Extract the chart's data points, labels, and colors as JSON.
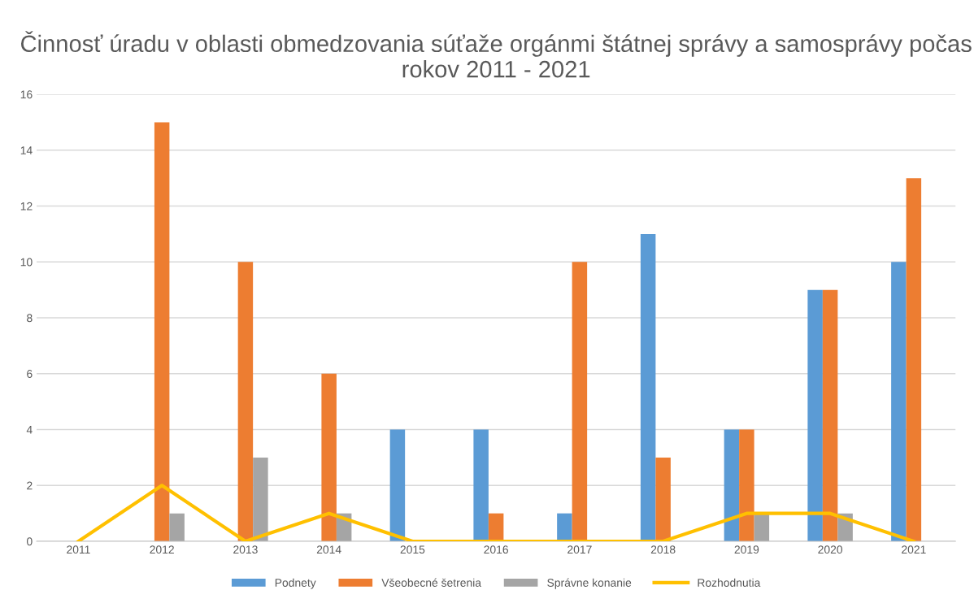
{
  "chart_data": {
    "type": "bar",
    "title": "Činnosť úradu v oblasti obmedzovania súťaže orgánmi štátnej správy a samosprávy počas rokov 2011 - 2021",
    "categories": [
      "2011",
      "2012",
      "2013",
      "2014",
      "2015",
      "2016",
      "2017",
      "2018",
      "2019",
      "2020",
      "2021"
    ],
    "series": [
      {
        "name": "Podnety",
        "color": "#5b9bd5",
        "values": [
          0,
          0,
          0,
          0,
          4,
          4,
          1,
          11,
          4,
          9,
          10
        ]
      },
      {
        "name": "Všeobecné šetrenia",
        "color": "#ed7d31",
        "values": [
          0,
          15,
          10,
          6,
          0,
          1,
          10,
          3,
          4,
          9,
          13
        ]
      },
      {
        "name": "Správne konanie",
        "color": "#a5a5a5",
        "values": [
          0,
          1,
          3,
          1,
          0,
          0,
          0,
          0,
          1,
          1,
          0
        ]
      },
      {
        "name": "Rozhodnutia",
        "type": "line",
        "color": "#ffc000",
        "values": [
          0,
          2,
          0,
          1,
          0,
          0,
          0,
          0,
          1,
          1,
          0
        ]
      }
    ],
    "ylim": [
      0,
      16
    ],
    "yticks": [
      0,
      2,
      4,
      6,
      8,
      10,
      12,
      14,
      16
    ],
    "grid": "y",
    "legend": "bottom"
  }
}
